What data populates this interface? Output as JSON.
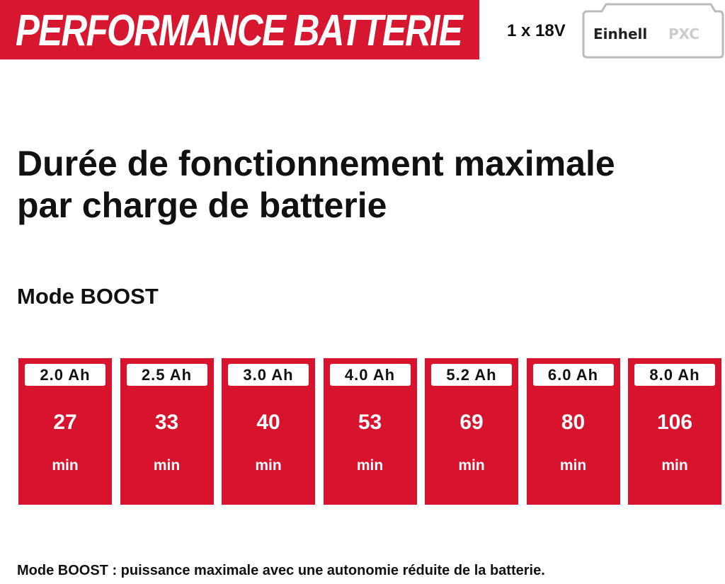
{
  "header": {
    "banner": "PERFORMANCE BATTERIE",
    "voltage": "1 x 18V",
    "logo_brand": "Einhell",
    "logo_suffix": "PXC"
  },
  "title": [
    "Durée de fonctionnement maximale",
    "par charge de batterie"
  ],
  "mode": "Mode BOOST",
  "cards": [
    {
      "capacity": "2.0 Ah",
      "runtime": 27,
      "unit": "min"
    },
    {
      "capacity": "2.5 Ah",
      "runtime": 33,
      "unit": "min"
    },
    {
      "capacity": "3.0 Ah",
      "runtime": 40,
      "unit": "min"
    },
    {
      "capacity": "4.0 Ah",
      "runtime": 53,
      "unit": "min"
    },
    {
      "capacity": "5.2 Ah",
      "runtime": 69,
      "unit": "min"
    },
    {
      "capacity": "6.0 Ah",
      "runtime": 80,
      "unit": "min"
    },
    {
      "capacity": "8.0 Ah",
      "runtime": 106,
      "unit": "min"
    }
  ],
  "footnote": "Mode BOOST : puissance maximale avec une autonomie réduite de la batterie."
}
